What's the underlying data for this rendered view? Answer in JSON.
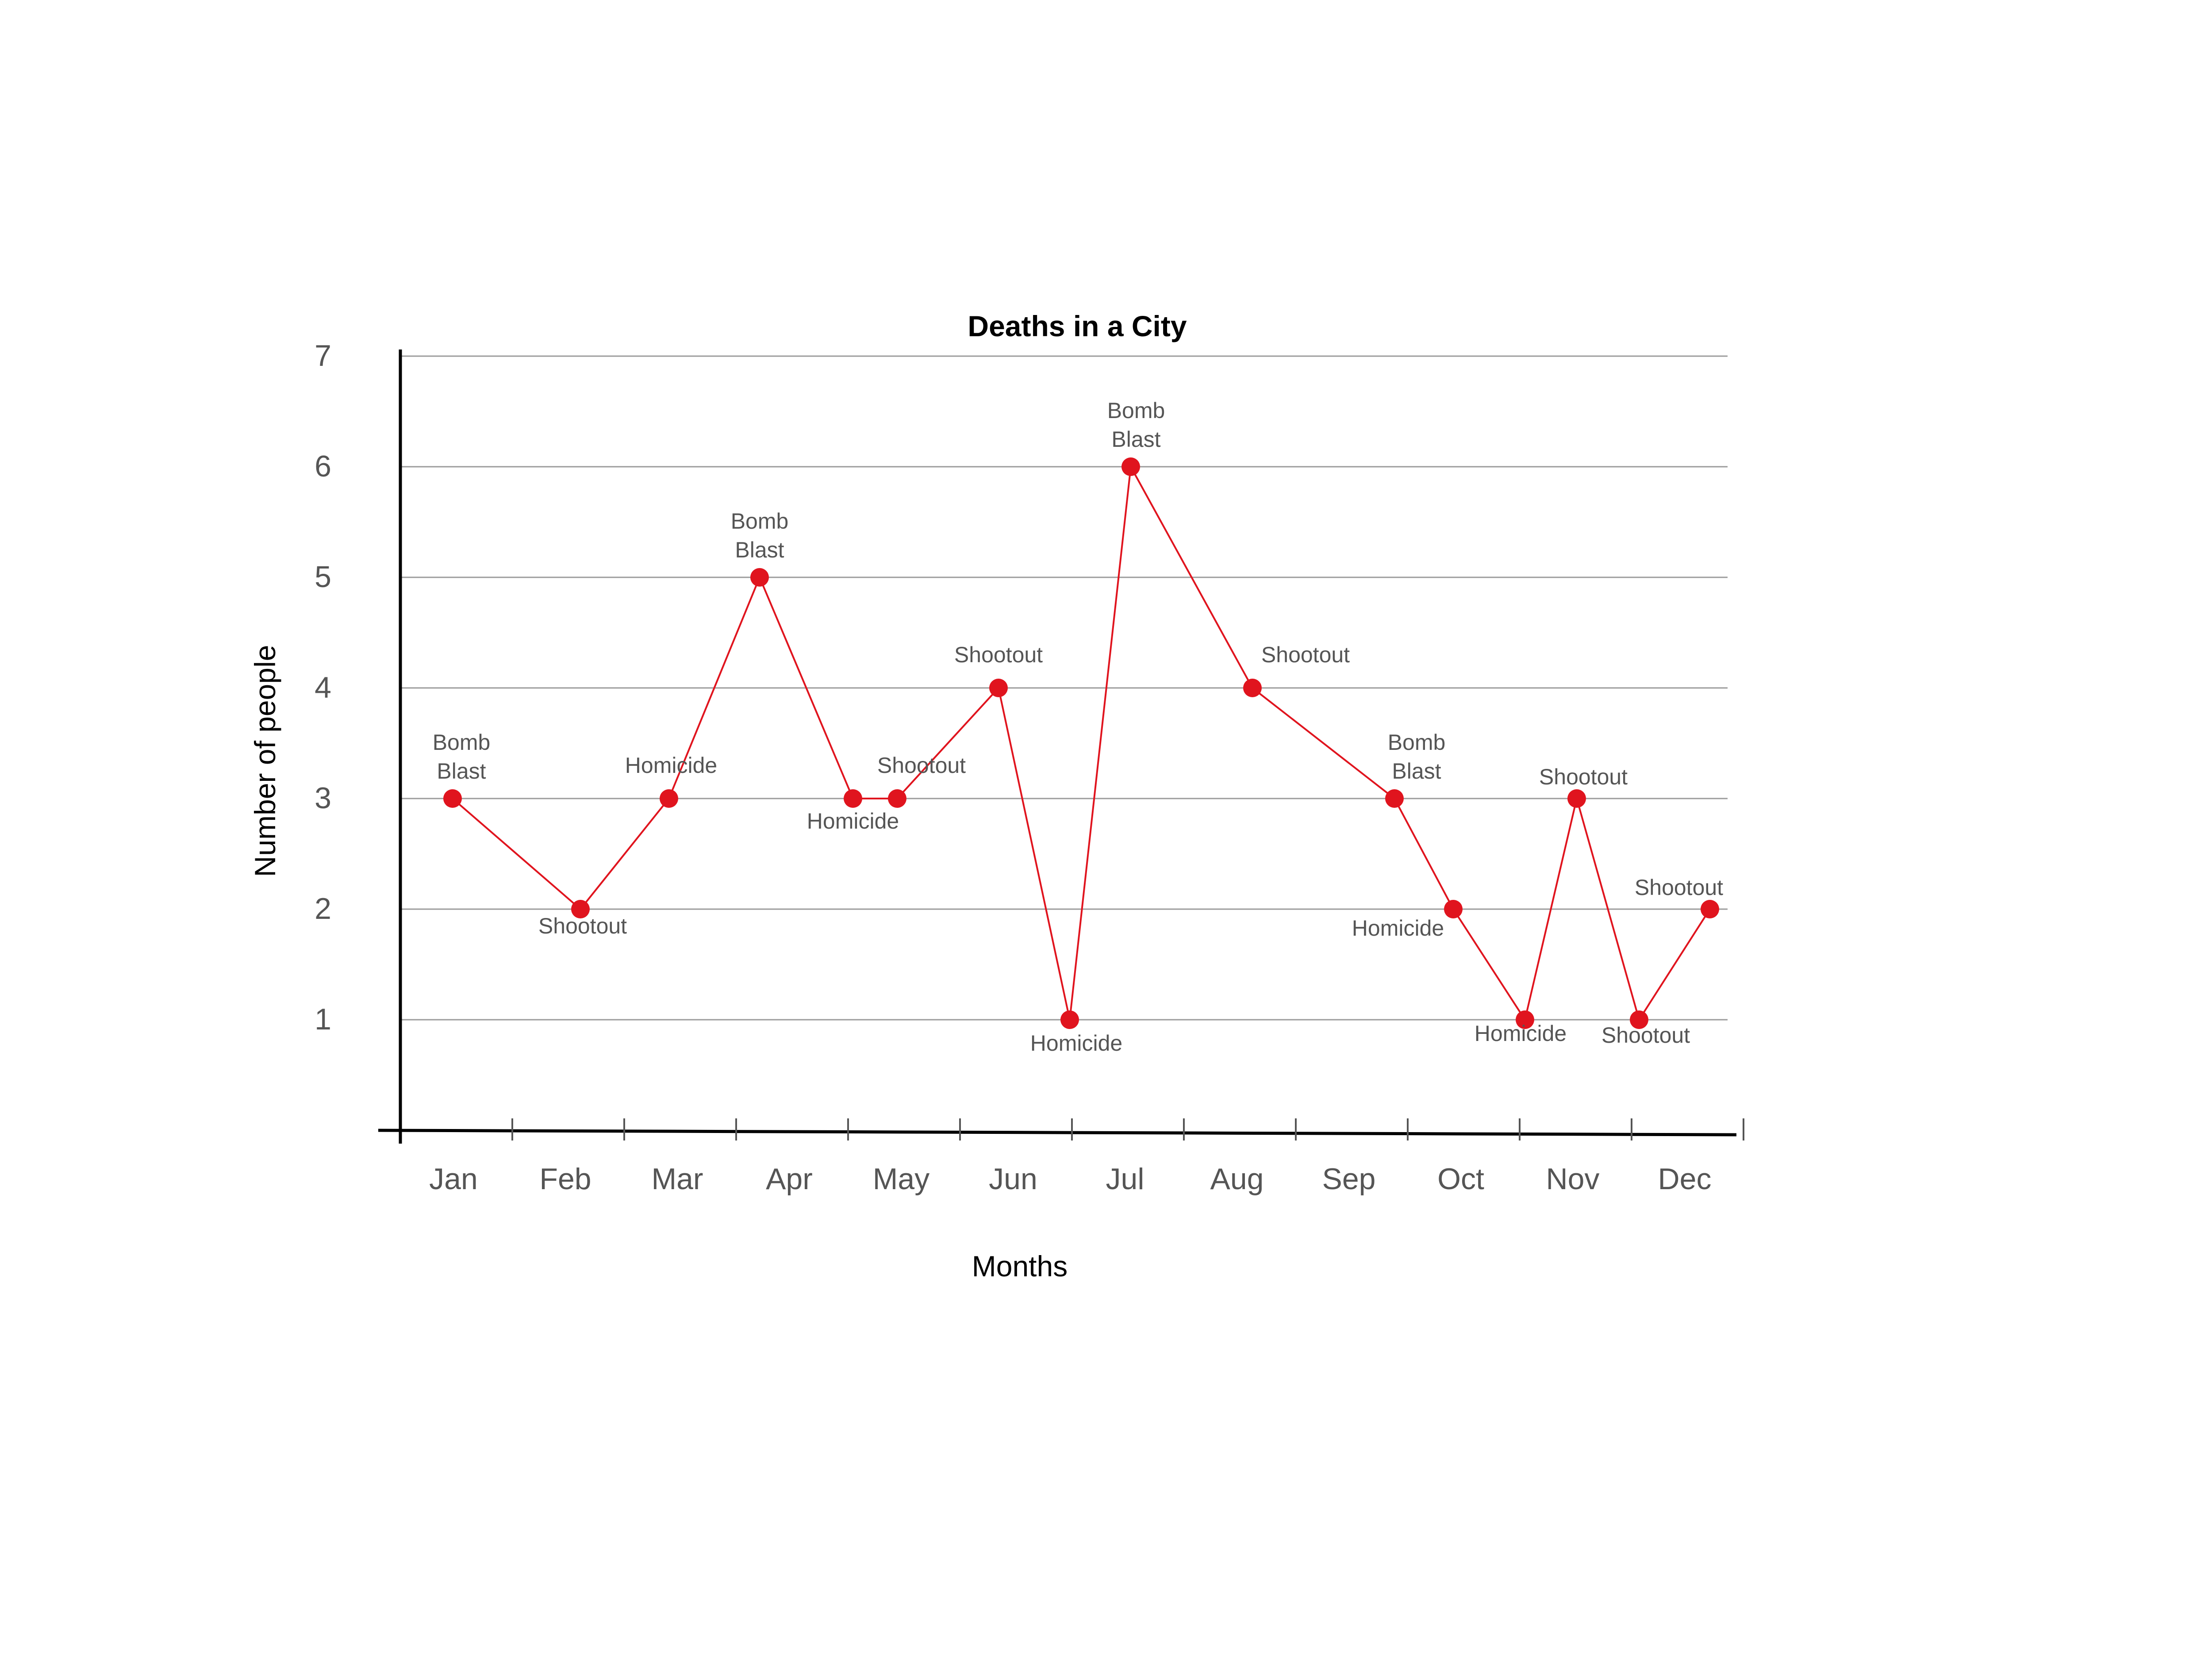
{
  "chart_data": {
    "type": "line",
    "title": "Deaths in a City",
    "xlabel": "Months",
    "ylabel": "Number of people",
    "categories": [
      "Jan",
      "Feb",
      "Mar",
      "Apr",
      "May",
      "Jun",
      "Jul",
      "Aug",
      "Sep",
      "Oct",
      "Nov",
      "Dec"
    ],
    "yticks": [
      1,
      2,
      3,
      4,
      5,
      6,
      7
    ],
    "ylim": [
      0,
      7
    ],
    "grid": true,
    "line_color": "#e0141e",
    "marker_color": "#e0141e",
    "points": [
      {
        "x": "Jan",
        "y": 3,
        "label": "Bomb Blast"
      },
      {
        "x": "Feb",
        "y": 2,
        "label": "Shootout"
      },
      {
        "x": "Mar",
        "y": 3,
        "label": "Homicide"
      },
      {
        "x": "Apr",
        "y": 5,
        "label": "Bomb Blast"
      },
      {
        "x": "May",
        "y": 3,
        "label": "Homicide"
      },
      {
        "x": "May",
        "y": 3,
        "label": "Shootout"
      },
      {
        "x": "Jun",
        "y": 4,
        "label": "Shootout"
      },
      {
        "x": "Jun",
        "y": 1,
        "label": "Homicide"
      },
      {
        "x": "Jul",
        "y": 6,
        "label": "Bomb Blast"
      },
      {
        "x": "Aug",
        "y": 4,
        "label": "Shootout"
      },
      {
        "x": "Sep",
        "y": 3,
        "label": "Bomb Blast"
      },
      {
        "x": "Oct",
        "y": 2,
        "label": "Homicide"
      },
      {
        "x": "Oct",
        "y": 1,
        "label": "Homicide"
      },
      {
        "x": "Nov",
        "y": 3,
        "label": "Shootout"
      },
      {
        "x": "Nov",
        "y": 1,
        "label": "Shootout"
      },
      {
        "x": "Dec",
        "y": 2,
        "label": "Shootout"
      }
    ]
  }
}
